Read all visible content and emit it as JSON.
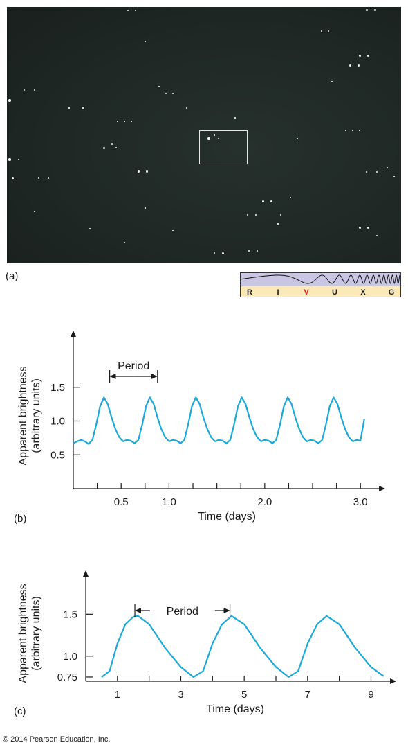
{
  "panel_a": {
    "label": "(a)",
    "spectrum_bands": [
      "R",
      "I",
      "V",
      "U",
      "X",
      "G"
    ],
    "spectrum_highlight": "V",
    "colors": {
      "sky": "#1f2825",
      "spectrum_fill": "#c9c6e3",
      "spectrum_label_bg": "#fbe9b7",
      "highlight": "#d4202a"
    }
  },
  "chart_data": [
    {
      "type": "line",
      "panel_label": "(b)",
      "xlabel": "Time (days)",
      "ylabel": [
        "Apparent brightness",
        "(arbitrary units)"
      ],
      "xticks": [
        0.25,
        0.5,
        0.75,
        1.0,
        1.25,
        1.5,
        1.75,
        2.0,
        2.25,
        2.5,
        2.75,
        3.0
      ],
      "xtick_labels": [
        {
          "x": 0.5,
          "label": "0.5"
        },
        {
          "x": 1.0,
          "label": "1.0"
        },
        {
          "x": 2.0,
          "label": "2.0"
        },
        {
          "x": 3.0,
          "label": "3.0"
        }
      ],
      "yticks": [
        {
          "y": 0.5,
          "label": "0.5"
        },
        {
          "y": 1.0,
          "label": "1.0"
        },
        {
          "y": 1.5,
          "label": "1.5"
        }
      ],
      "xlim": [
        0,
        3.15
      ],
      "ylim": [
        0,
        2.0
      ],
      "annotation": {
        "text": "Period",
        "from_x": 0.38,
        "to_x": 0.88
      },
      "series": [
        {
          "x": [
            0.0,
            0.04,
            0.08,
            0.12,
            0.16,
            0.2,
            0.24,
            0.28,
            0.32,
            0.36,
            0.4,
            0.44,
            0.48,
            0.52,
            0.56,
            0.6,
            0.64,
            0.68,
            0.72,
            0.76,
            0.8,
            0.84,
            0.88,
            0.92,
            0.96,
            1.0,
            1.04,
            1.08,
            1.12,
            1.16,
            1.2,
            1.24,
            1.28,
            1.32,
            1.36,
            1.4,
            1.44,
            1.48,
            1.52,
            1.56,
            1.6,
            1.64,
            1.68,
            1.72,
            1.76,
            1.8,
            1.84,
            1.88,
            1.92,
            1.96,
            2.0,
            2.04,
            2.08,
            2.12,
            2.16,
            2.2,
            2.24,
            2.28,
            2.32,
            2.36,
            2.4,
            2.44,
            2.48,
            2.52,
            2.56,
            2.6,
            2.64,
            2.68,
            2.72,
            2.76,
            2.8,
            2.84,
            2.88,
            2.92,
            2.96,
            3.0,
            3.04
          ],
          "y": [
            0.67,
            0.7,
            0.72,
            0.7,
            0.66,
            0.72,
            0.95,
            1.22,
            1.35,
            1.25,
            1.05,
            0.88,
            0.76,
            0.7,
            0.72,
            0.71,
            0.67,
            0.72,
            0.95,
            1.22,
            1.35,
            1.25,
            1.05,
            0.88,
            0.76,
            0.7,
            0.72,
            0.71,
            0.67,
            0.72,
            0.95,
            1.22,
            1.35,
            1.25,
            1.05,
            0.88,
            0.76,
            0.7,
            0.72,
            0.71,
            0.67,
            0.72,
            0.95,
            1.22,
            1.35,
            1.25,
            1.05,
            0.88,
            0.76,
            0.7,
            0.72,
            0.71,
            0.67,
            0.72,
            0.95,
            1.22,
            1.35,
            1.25,
            1.05,
            0.88,
            0.76,
            0.7,
            0.72,
            0.71,
            0.67,
            0.72,
            0.95,
            1.22,
            1.35,
            1.25,
            1.05,
            0.88,
            0.76,
            0.7,
            0.72,
            0.71,
            1.03
          ],
          "color": "#1ba9d8"
        }
      ]
    },
    {
      "type": "line",
      "panel_label": "(c)",
      "xlabel": "Time (days)",
      "ylabel": [
        "Apparent brightness",
        "(arbitrary units)"
      ],
      "xticks": [
        1,
        2,
        3,
        4,
        5,
        6,
        7,
        8,
        9
      ],
      "xtick_labels": [
        {
          "x": 1,
          "label": "1"
        },
        {
          "x": 3,
          "label": "3"
        },
        {
          "x": 5,
          "label": "5"
        },
        {
          "x": 7,
          "label": "7"
        },
        {
          "x": 9,
          "label": "9"
        }
      ],
      "yticks": [
        {
          "y": 0.75,
          "label": "0.75"
        },
        {
          "y": 1.0,
          "label": "1.0"
        },
        {
          "y": 1.5,
          "label": "1.5"
        }
      ],
      "xlim": [
        0,
        9.6
      ],
      "ylim": [
        0.7,
        1.9
      ],
      "annotation": {
        "text": "Period",
        "from_x": 1.55,
        "to_x": 4.55
      },
      "series": [
        {
          "x": [
            0.5,
            0.75,
            1.0,
            1.25,
            1.5,
            1.65,
            2.0,
            2.5,
            3.0,
            3.4,
            3.7,
            4.0,
            4.3,
            4.6,
            5.0,
            5.5,
            6.0,
            6.4,
            6.7,
            7.0,
            7.3,
            7.6,
            8.0,
            8.5,
            9.0,
            9.4
          ],
          "y": [
            0.75,
            0.82,
            1.15,
            1.38,
            1.47,
            1.48,
            1.38,
            1.1,
            0.87,
            0.75,
            0.82,
            1.15,
            1.38,
            1.48,
            1.38,
            1.1,
            0.87,
            0.75,
            0.82,
            1.15,
            1.38,
            1.48,
            1.38,
            1.1,
            0.87,
            0.76
          ],
          "color": "#1ba9d8"
        }
      ]
    }
  ],
  "footer": {
    "copyright": "© 2014 Pearson Education, Inc."
  }
}
